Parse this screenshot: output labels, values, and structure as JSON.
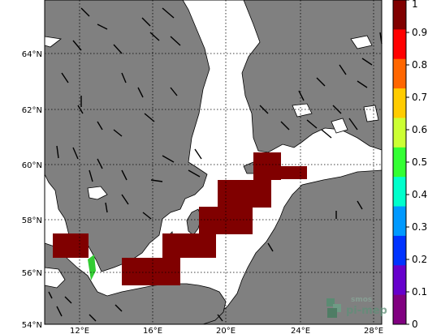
{
  "map": {
    "lat_labels": [
      "64°N",
      "62°N",
      "60°N",
      "58°N",
      "56°N",
      "54°N"
    ],
    "lon_labels": [
      "12°E",
      "16°E",
      "20°E",
      "24°E",
      "28°E"
    ],
    "colors": {
      "land": "#808080",
      "sea": "#ffffff",
      "coast": "#000000",
      "cell_value_1": "#800000",
      "gridline": "#000000"
    }
  },
  "colorbar": {
    "ticks": [
      "1",
      "0.9",
      "0.8",
      "0.7",
      "0.6",
      "0.5",
      "0.4",
      "0.3",
      "0.2",
      "0.1",
      "0"
    ],
    "range": [
      0,
      1
    ],
    "colors": [
      "#800000",
      "#ff0000",
      "#ff6600",
      "#ffcc00",
      "#ccff33",
      "#33ff33",
      "#00ffcc",
      "#0099ff",
      "#0033ff",
      "#6600cc",
      "#800080"
    ]
  },
  "watermark": {
    "line1": "smos",
    "line2": "pi-mep"
  }
}
